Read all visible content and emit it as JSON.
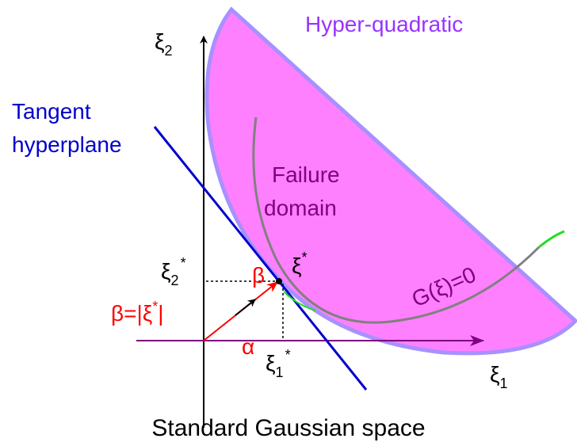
{
  "title": "Standard Gaussian space",
  "labels": {
    "hyper_quadratic": "Hyper-quadratic",
    "tangent": [
      "Tangent",
      "hyperplane"
    ],
    "failure": [
      "Failure",
      "domain"
    ],
    "limit_state": "G(ξ)=0",
    "beta": "β",
    "alpha": "α"
  },
  "beta_definition": {
    "before": "β=|ξ",
    "sup": "*",
    "after": "|"
  },
  "axes": {
    "x": {
      "base": "ξ",
      "sub": "1"
    },
    "y": {
      "base": "ξ",
      "sub": "2"
    }
  },
  "design_point": {
    "base": "ξ",
    "sup": "*"
  },
  "x_star": {
    "base": "ξ",
    "sub": "1",
    "sup": "*"
  },
  "y_star": {
    "base": "ξ",
    "sub": "2",
    "sup": "*"
  }
}
